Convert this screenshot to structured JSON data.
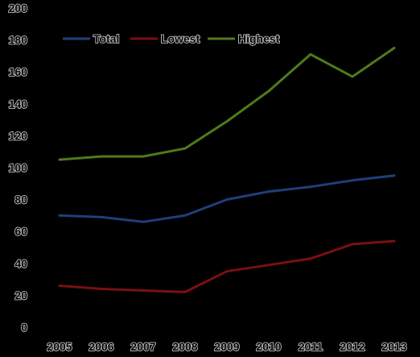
{
  "chart_data": {
    "type": "line",
    "x": [
      "2005",
      "2006",
      "2007",
      "2008",
      "2009",
      "2010",
      "2011",
      "2012",
      "2013"
    ],
    "ylim": [
      0,
      200
    ],
    "yticks": [
      "0",
      "20",
      "40",
      "60",
      "80",
      "100",
      "120",
      "140",
      "160",
      "180",
      "200"
    ],
    "grid": false,
    "legend_position": "top-left",
    "series": [
      {
        "name": "Total",
        "color": "#1f3f7a",
        "values": [
          70,
          69,
          66,
          70,
          80,
          85,
          88,
          92,
          95
        ]
      },
      {
        "name": "Lowest",
        "color": "#7a1010",
        "values": [
          26,
          24,
          23,
          22,
          35,
          39,
          43,
          52,
          54
        ]
      },
      {
        "name": "Highest",
        "color": "#4f7a1a",
        "values": [
          105,
          107,
          107,
          112,
          129,
          148,
          171,
          157,
          175
        ]
      }
    ]
  }
}
